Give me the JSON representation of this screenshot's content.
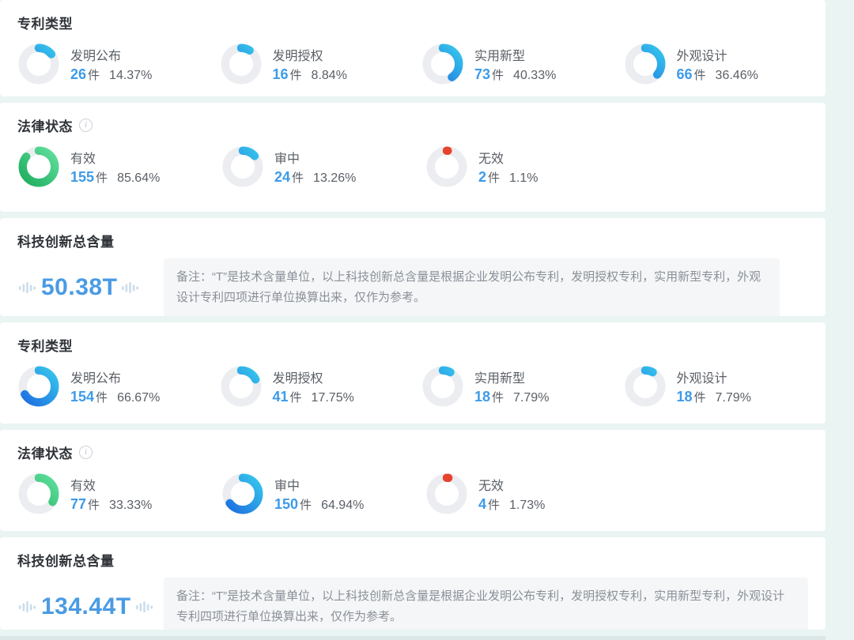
{
  "colors": {
    "page_bg": "#e9f4f3",
    "card_bg": "#ffffff",
    "accent_blue": "#3d9be9",
    "donut_track": "#ebedf1",
    "note_bg": "#f5f6f7",
    "note_text": "#8a9099"
  },
  "donut_schemes": {
    "blue": [
      "#1e6ee0",
      "#36c6ec"
    ],
    "green": [
      "#1ead5e",
      "#5fdf9c"
    ],
    "red": [
      "#e8422e",
      "#e8422e"
    ]
  },
  "sections": [
    {
      "title": "专利类型",
      "items": [
        {
          "label": "发明公布",
          "count": "26",
          "unit": "件",
          "percent": "14.37%",
          "value": 14.37,
          "scheme": "blue"
        },
        {
          "label": "发明授权",
          "count": "16",
          "unit": "件",
          "percent": "8.84%",
          "value": 8.84,
          "scheme": "blue"
        },
        {
          "label": "实用新型",
          "count": "73",
          "unit": "件",
          "percent": "40.33%",
          "value": 40.33,
          "scheme": "blue"
        },
        {
          "label": "外观设计",
          "count": "66",
          "unit": "件",
          "percent": "36.46%",
          "value": 36.46,
          "scheme": "blue"
        }
      ]
    },
    {
      "title": "法律状态",
      "items": [
        {
          "label": "有效",
          "count": "155",
          "unit": "件",
          "percent": "85.64%",
          "value": 85.64,
          "scheme": "green"
        },
        {
          "label": "审中",
          "count": "24",
          "unit": "件",
          "percent": "13.26%",
          "value": 13.26,
          "scheme": "blue"
        },
        {
          "label": "无效",
          "count": "2",
          "unit": "件",
          "percent": "1.1%",
          "value": 1.1,
          "scheme": "red"
        }
      ]
    },
    {
      "title": "科技创新总含量",
      "value": "50.38T",
      "note": "备注：“T”是技术含量单位，以上科技创新总含量是根据企业发明公布专利，发明授权专利，实用新型专利，外观设计专利四项进行单位换算出来，仅作为参考。"
    },
    {
      "title": "专利类型",
      "items": [
        {
          "label": "发明公布",
          "count": "154",
          "unit": "件",
          "percent": "66.67%",
          "value": 66.67,
          "scheme": "blue"
        },
        {
          "label": "发明授权",
          "count": "41",
          "unit": "件",
          "percent": "17.75%",
          "value": 17.75,
          "scheme": "blue"
        },
        {
          "label": "实用新型",
          "count": "18",
          "unit": "件",
          "percent": "7.79%",
          "value": 7.79,
          "scheme": "blue"
        },
        {
          "label": "外观设计",
          "count": "18",
          "unit": "件",
          "percent": "7.79%",
          "value": 7.79,
          "scheme": "blue"
        }
      ]
    },
    {
      "title": "法律状态",
      "items": [
        {
          "label": "有效",
          "count": "77",
          "unit": "件",
          "percent": "33.33%",
          "value": 33.33,
          "scheme": "green"
        },
        {
          "label": "审中",
          "count": "150",
          "unit": "件",
          "percent": "64.94%",
          "value": 64.94,
          "scheme": "blue"
        },
        {
          "label": "无效",
          "count": "4",
          "unit": "件",
          "percent": "1.73%",
          "value": 1.73,
          "scheme": "red"
        }
      ]
    },
    {
      "title": "科技创新总含量",
      "value": "134.44T",
      "note": "备注：“T”是技术含量单位，以上科技创新总含量是根据企业发明公布专利，发明授权专利，实用新型专利，外观设计专利四项进行单位换算出来，仅作为参考。"
    }
  ]
}
